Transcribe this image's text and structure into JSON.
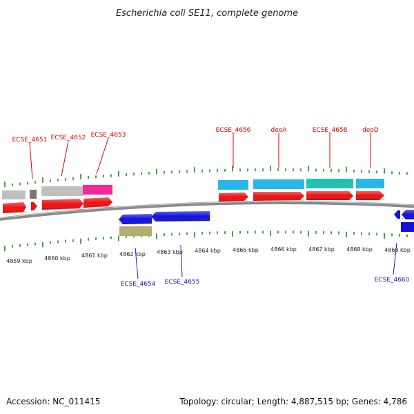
{
  "title": "Escherichia coli SE11, complete genome",
  "footer": {
    "accession": "Accession: NC_011415",
    "summary": "Topology: circular; Length: 4,887,515 bp; Genes: 4,786"
  },
  "ruler": {
    "unit": "kbp",
    "labels": [
      "4859 kbp",
      "4860 kbp",
      "4861 kbp",
      "4862 kbp",
      "4863 kbp",
      "4864 kbp",
      "4865 kbp",
      "4866 kbp",
      "4867 kbp",
      "4868 kbp",
      "4869 kbp"
    ]
  },
  "colors": {
    "plus_gene": "#ee1111",
    "minus_gene": "#1111dd",
    "cds_grey": "#bfbfbf",
    "cds_dark_grey": "#777777",
    "cds_pink": "#ee2a9a",
    "cds_cyan": "#29b6e8",
    "cds_teal": "#22c1b4",
    "cds_olive": "#b5ad72",
    "backbone": "#8a8a8a",
    "tick": "#1f8a1f",
    "label_plus": "#d40000",
    "label_minus": "#1a1aa8"
  },
  "gene_labels_plus": [
    "ECSE_4651",
    "ECSE_4652",
    "ECSE_4653",
    "ECSE_4656",
    "deoA",
    "ECSE_4658",
    "deoD"
  ],
  "gene_labels_minus": [
    "ECSE_4654",
    "ECSE_4655",
    "ECSE_4660"
  ]
}
